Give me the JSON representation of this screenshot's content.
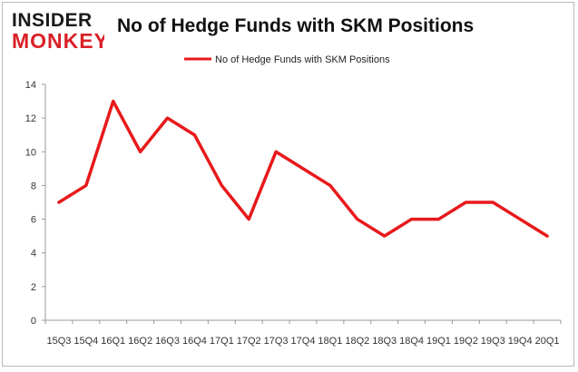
{
  "logo": {
    "line1": "INSIDER",
    "line2": "MONKEY",
    "color": "#d92027"
  },
  "title": "No of Hedge Funds with SKM Positions",
  "chart_data": {
    "type": "line",
    "title": "No of Hedge Funds with SKM Positions",
    "categories": [
      "15Q3",
      "15Q4",
      "16Q1",
      "16Q2",
      "16Q3",
      "16Q4",
      "17Q1",
      "17Q2",
      "17Q3",
      "17Q4",
      "18Q1",
      "18Q2",
      "18Q3",
      "18Q4",
      "19Q1",
      "19Q2",
      "19Q3",
      "19Q4",
      "20Q1"
    ],
    "series": [
      {
        "name": "No of Hedge Funds with SKM Positions",
        "color": "#e8191b",
        "values": [
          7,
          8,
          13,
          10,
          12,
          11,
          8,
          6,
          10,
          9,
          8,
          6,
          5,
          6,
          6,
          7,
          7,
          6,
          5
        ]
      }
    ],
    "yticks": [
      0,
      2,
      4,
      6,
      8,
      10,
      12,
      14
    ],
    "ylim": [
      0,
      14
    ],
    "legend": "top-center",
    "grid": false
  }
}
